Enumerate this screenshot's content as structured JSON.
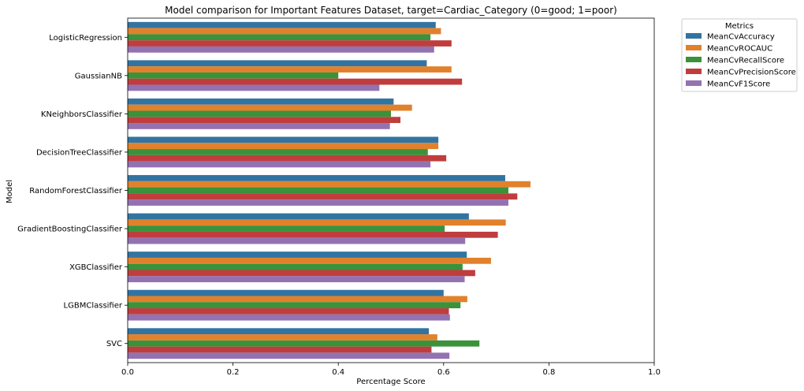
{
  "chart_data": {
    "type": "bar",
    "orientation": "horizontal",
    "title": "Model comparison for Important Features Dataset, target=Cardiac_Category (0=good; 1=poor)",
    "xlabel": "Percentage Score",
    "ylabel": "Model",
    "xlim": [
      0,
      1.0
    ],
    "xticks": [
      "0.0",
      "0.2",
      "0.4",
      "0.6",
      "0.8",
      "1.0"
    ],
    "grid": false,
    "legend": {
      "title": "Metrics",
      "placement": "outside-top-right"
    },
    "categories": [
      "LogisticRegression",
      "GaussianNB",
      "KNeighborsClassifier",
      "DecisionTreeClassifier",
      "RandomForestClassifier",
      "GradientBoostingClassifier",
      "XGBClassifier",
      "LGBMClassifier",
      "SVC"
    ],
    "series": [
      {
        "name": "MeanCvAccuracy",
        "color": "#3274a1",
        "values": [
          0.585,
          0.568,
          0.505,
          0.59,
          0.717,
          0.648,
          0.644,
          0.6,
          0.572
        ]
      },
      {
        "name": "MeanCvROCAUC",
        "color": "#e1812c",
        "values": [
          0.595,
          0.615,
          0.54,
          0.59,
          0.765,
          0.718,
          0.69,
          0.645,
          0.588
        ]
      },
      {
        "name": "MeanCvRecallScore",
        "color": "#3a923a",
        "values": [
          0.575,
          0.4,
          0.5,
          0.57,
          0.723,
          0.602,
          0.636,
          0.632,
          0.668
        ]
      },
      {
        "name": "MeanCvPrecisionScore",
        "color": "#c03d3e",
        "values": [
          0.615,
          0.635,
          0.518,
          0.605,
          0.74,
          0.703,
          0.66,
          0.61,
          0.577
        ]
      },
      {
        "name": "MeanCvF1Score",
        "color": "#9372b2",
        "values": [
          0.582,
          0.478,
          0.498,
          0.575,
          0.723,
          0.641,
          0.64,
          0.612,
          0.611
        ]
      }
    ]
  }
}
